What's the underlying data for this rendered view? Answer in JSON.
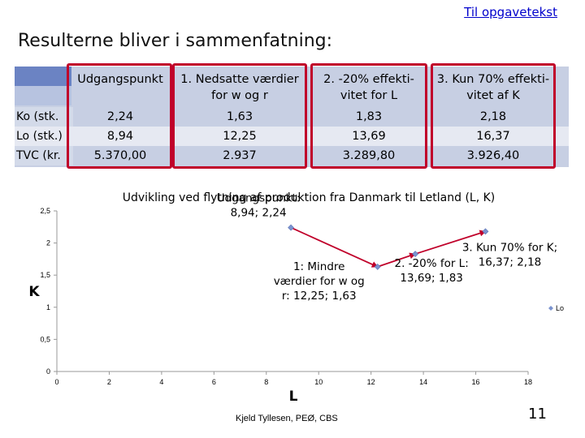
{
  "link": {
    "label": "Til opgavetekst"
  },
  "title": "Resulterne bliver i sammenfatning:",
  "table": {
    "headers": [
      {
        "lines": [
          "Udgangspunkt",
          ""
        ]
      },
      {
        "lines": [
          "1. Nedsatte værdier",
          "for w og r"
        ]
      },
      {
        "lines": [
          "2. -20% effekti-",
          "vitet for L"
        ]
      },
      {
        "lines": [
          "3. Kun 70% effekti-",
          "vitet af K"
        ]
      }
    ],
    "row_labels": [
      "Ko (stk.",
      "Lo (stk.)",
      "TVC (kr."
    ],
    "rows": [
      [
        "2,24",
        "1,63",
        "1,83",
        "2,18"
      ],
      [
        "8,94",
        "12,25",
        "13,69",
        "16,37"
      ],
      [
        "5.370,00",
        "2.937",
        "3.289,80",
        "3.926,40"
      ]
    ],
    "colors": {
      "band_dark": "#c7cfe3",
      "band_light": "#e6e9f2",
      "highlight_border": "#c0002a",
      "header_stub": "#6b83c3"
    }
  },
  "chart_data": {
    "type": "line",
    "title": "Udvikling ved flytning af produktion fra Danmark til Letland (L, K)",
    "xlabel": "L",
    "ylabel": "K",
    "xlim": [
      0,
      18
    ],
    "ylim": [
      0,
      2.5
    ],
    "xticks": [
      "0",
      "2",
      "4",
      "6",
      "8",
      "10",
      "12",
      "14",
      "16",
      "18"
    ],
    "yticks": [
      "0",
      "0,5",
      "1",
      "1,5",
      "2",
      "2,5"
    ],
    "series": [
      {
        "name": "Lo",
        "x": [
          8.94,
          12.25,
          13.69,
          16.37
        ],
        "y": [
          2.24,
          1.63,
          1.83,
          2.18
        ]
      }
    ],
    "annotations": [
      {
        "lines": [
          "Udgangspunkt:",
          "8,94; 2,24"
        ]
      },
      {
        "lines": [
          "1: Mindre",
          "værdier for w og",
          "r: 12,25; 1,63"
        ]
      },
      {
        "lines": [
          "2.  -20% for L:",
          "13,69; 1,83"
        ]
      },
      {
        "lines": [
          "3. Kun 70% for K;",
          "16,37; 2,18"
        ]
      }
    ],
    "arrow_color": "#c0002a",
    "point_color": "#7b93cf"
  },
  "footer": "Kjeld Tyllesen, PEØ, CBS",
  "slide_number": "11"
}
